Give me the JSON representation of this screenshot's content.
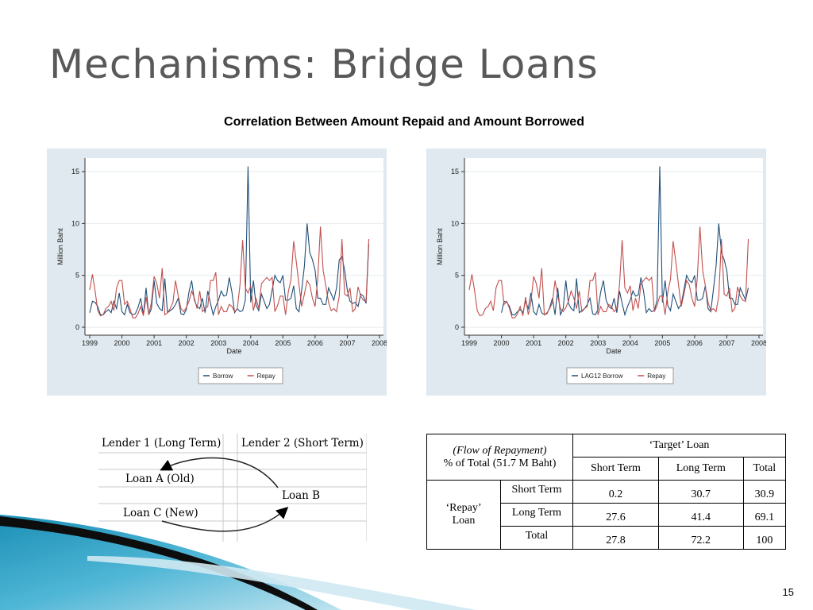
{
  "slide": {
    "title": "Mechanisms: Bridge Loans",
    "subtitle": "Correlation Between Amount Repaid and Amount Borrowed",
    "page_number": "15"
  },
  "chart_data": [
    {
      "type": "line",
      "title": "",
      "xlabel": "Date",
      "ylabel": "Million Baht",
      "xlim": [
        1999,
        2008
      ],
      "ylim": [
        0,
        16
      ],
      "x_ticks": [
        "1999",
        "2000",
        "2001",
        "2002",
        "2003",
        "2004",
        "2005",
        "2006",
        "2007",
        "2008"
      ],
      "y_ticks": [
        "0",
        "5",
        "10",
        "15"
      ],
      "grid": "horizontal",
      "legend": "bottom",
      "series": [
        {
          "name": "Borrow",
          "color": "#1f4e79",
          "values": [
            1.4,
            2.5,
            2.4,
            2.0,
            1.2,
            1.2,
            1.5,
            1.7,
            1.4,
            2.5,
            1.8,
            3.3,
            1.5,
            1.2,
            2.2,
            1.4,
            1.2,
            1.3,
            1.9,
            2.8,
            1.2,
            3.8,
            1.2,
            1.8,
            4.5,
            2.3,
            1.8,
            1.6,
            4.7,
            1.4,
            1.6,
            1.8,
            2.2,
            2.8,
            1.3,
            1.2,
            1.7,
            3.4,
            4.5,
            2.6,
            2.0,
            1.8,
            2.8,
            1.4,
            3.5,
            2.3,
            1.2,
            2.0,
            2.6,
            3.5,
            3.0,
            3.1,
            4.8,
            3.4,
            1.4,
            1.8,
            1.5,
            1.6,
            2.6,
            15.5,
            2.4,
            4.5,
            2.1,
            1.6,
            3.2,
            2.5,
            1.8,
            2.2,
            3.6,
            5.0,
            4.5,
            4.3,
            5.0,
            2.6,
            2.6,
            2.8,
            4.0,
            1.8,
            1.5,
            3.6,
            5.9,
            10.0,
            7.2,
            6.5,
            5.5,
            2.8,
            2.8,
            2.2,
            2.2,
            3.8,
            3.2,
            2.6,
            3.8,
            6.5,
            6.8,
            5.5,
            3.6,
            2.5,
            2.3,
            2.4,
            2.0,
            3.2,
            3.0,
            2.3,
            8.0
          ]
        },
        {
          "name": "Repay",
          "color": "#c0504d",
          "values": [
            3.6,
            5.1,
            3.5,
            1.6,
            1.1,
            1.2,
            1.8,
            2.0,
            2.5,
            1.6,
            3.8,
            4.5,
            4.5,
            2.2,
            2.5,
            1.8,
            0.9,
            0.9,
            1.3,
            2.0,
            1.1,
            2.9,
            1.2,
            2.4,
            4.9,
            4.2,
            2.8,
            5.7,
            1.2,
            1.4,
            1.8,
            2.4,
            4.5,
            3.0,
            1.8,
            1.5,
            1.9,
            2.5,
            3.5,
            2.8,
            1.8,
            3.5,
            1.5,
            1.8,
            2.0,
            4.5,
            4.5,
            5.3,
            1.2,
            2.0,
            1.5,
            1.5,
            2.2,
            2.0,
            1.5,
            1.8,
            4.1,
            8.4,
            3.8,
            3.3,
            4.0,
            1.6,
            2.8,
            1.8,
            4.2,
            4.5,
            4.8,
            4.5,
            4.8,
            1.5,
            2.1,
            3.0,
            3.0,
            1.2,
            3.4,
            4.6,
            8.3,
            6.3,
            4.1,
            2.0,
            3.2,
            4.5,
            4.1,
            2.8,
            2.0,
            4.8,
            9.7,
            5.5,
            4.0,
            2.4,
            1.6,
            1.8,
            1.5,
            3.0,
            8.5,
            3.2,
            3.0,
            3.8,
            1.5,
            1.8,
            3.9,
            3.0,
            2.6,
            2.5,
            8.5
          ]
        }
      ]
    },
    {
      "type": "line",
      "title": "",
      "xlabel": "Date",
      "ylabel": "Million Baht",
      "xlim": [
        1999,
        2008
      ],
      "ylim": [
        0,
        16
      ],
      "x_ticks": [
        "1999",
        "2000",
        "2001",
        "2002",
        "2003",
        "2004",
        "2005",
        "2006",
        "2007",
        "2008"
      ],
      "y_ticks": [
        "0",
        "5",
        "10",
        "15"
      ],
      "grid": "horizontal",
      "legend": "bottom",
      "series": [
        {
          "name": "LAG12 Borrow",
          "color": "#1f4e79",
          "start": 2000,
          "values": [
            1.4,
            2.5,
            2.4,
            2.0,
            1.2,
            1.2,
            1.5,
            1.7,
            1.4,
            2.5,
            1.8,
            3.3,
            1.5,
            1.2,
            2.2,
            1.4,
            1.2,
            1.3,
            1.9,
            2.8,
            1.2,
            3.8,
            1.2,
            1.8,
            4.5,
            2.3,
            1.8,
            1.6,
            4.7,
            1.4,
            1.6,
            1.8,
            2.2,
            2.8,
            1.3,
            1.2,
            1.7,
            3.4,
            4.5,
            2.6,
            2.0,
            1.8,
            2.8,
            1.4,
            3.5,
            2.3,
            1.2,
            2.0,
            2.6,
            3.5,
            3.0,
            3.1,
            4.8,
            3.4,
            1.4,
            1.8,
            1.5,
            1.6,
            2.6,
            15.5,
            2.4,
            4.5,
            2.1,
            1.6,
            3.2,
            2.5,
            1.8,
            2.2,
            3.6,
            5.0,
            4.5,
            4.3,
            5.0,
            2.6,
            2.6,
            2.8,
            4.0,
            1.8,
            1.5,
            3.6,
            5.9,
            10.0,
            7.2,
            6.5,
            5.5,
            2.8,
            2.8,
            2.2,
            2.2,
            3.8,
            3.2,
            2.6,
            3.8
          ]
        },
        {
          "name": "Repay",
          "color": "#c0504d",
          "values": [
            3.6,
            5.1,
            3.5,
            1.6,
            1.1,
            1.2,
            1.8,
            2.0,
            2.5,
            1.6,
            3.8,
            4.5,
            4.5,
            2.2,
            2.5,
            1.8,
            0.9,
            0.9,
            1.3,
            2.0,
            1.1,
            2.9,
            1.2,
            2.4,
            4.9,
            4.2,
            2.8,
            5.7,
            1.2,
            1.4,
            1.8,
            2.4,
            4.5,
            3.0,
            1.8,
            1.5,
            1.9,
            2.5,
            3.5,
            2.8,
            1.8,
            3.5,
            1.5,
            1.8,
            2.0,
            4.5,
            4.5,
            5.3,
            1.2,
            2.0,
            1.5,
            1.5,
            2.2,
            2.0,
            1.5,
            1.8,
            4.1,
            8.4,
            3.8,
            3.3,
            4.0,
            1.6,
            2.8,
            1.8,
            4.2,
            4.5,
            4.8,
            4.5,
            4.8,
            1.5,
            2.1,
            3.0,
            3.0,
            1.2,
            3.4,
            4.6,
            8.3,
            6.3,
            4.1,
            2.0,
            3.2,
            4.5,
            4.1,
            2.8,
            2.0,
            4.8,
            9.7,
            5.5,
            4.0,
            2.4,
            1.6,
            1.8,
            1.5,
            3.0,
            8.5,
            3.2,
            3.0,
            3.8,
            1.5,
            1.8,
            3.9,
            3.0,
            2.6,
            2.5,
            8.5
          ]
        }
      ]
    }
  ],
  "lender_diagram": {
    "header_left": "Lender 1 (Long Term)",
    "header_right": "Lender 2 (Short Term)",
    "loan_a": "Loan A (Old)",
    "loan_b": "Loan B",
    "loan_c": "Loan C (New)"
  },
  "flow_table": {
    "corner_line1": "(Flow of Repayment)",
    "corner_line2": "% of Total (51.7 M Baht)",
    "target_header": "‘Target’ Loan",
    "columns": [
      "Short Term",
      "Long Term",
      "Total"
    ],
    "repay_label": "‘Repay’ Loan",
    "rows": [
      {
        "label": "Short Term",
        "values": [
          "0.2",
          "30.7",
          "30.9"
        ]
      },
      {
        "label": "Long Term",
        "values": [
          "27.6",
          "41.4",
          "69.1"
        ]
      },
      {
        "label": "Total",
        "values": [
          "27.8",
          "72.2",
          "100"
        ]
      }
    ]
  }
}
